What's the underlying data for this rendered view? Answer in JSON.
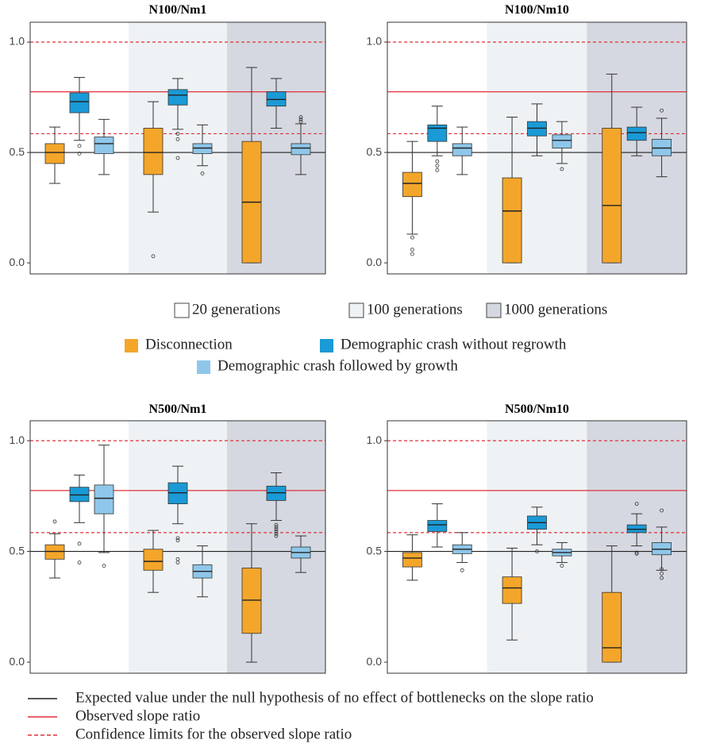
{
  "chart_data": [
    {
      "type": "box",
      "title": "N100/Nm1",
      "categories": [
        "20 generations",
        "100 generations",
        "1000 generations"
      ],
      "band_colors": [
        "#ffffff",
        "#eef2f4",
        "#d5d8e0"
      ],
      "ylim": [
        -0.05,
        1.09
      ],
      "yticks": [
        {
          "value": 0,
          "label": "0.0"
        },
        {
          "value": 0.5,
          "label": "0.5"
        },
        {
          "value": 1,
          "label": "1.0"
        }
      ],
      "reference_lines": [
        {
          "name": "Expected value under the null hypothesis of no effect of bottlenecks on the slope ratio",
          "values": [
            0.5
          ],
          "color": "#222222",
          "style": "solid"
        },
        {
          "name": "Observed slope ratio",
          "values": [
            0.775
          ],
          "color": "#e0303a",
          "style": "solid"
        },
        {
          "name": "Confidence limits for the observed slope ratio",
          "values": [
            0.585,
            1.0
          ],
          "color": "#e0303a",
          "style": "dashed"
        }
      ],
      "series": [
        {
          "name": "Disconnection",
          "color": "#f4a62a",
          "values": [
            {
              "min": 0.36,
              "q1": 0.45,
              "median": 0.5,
              "q3": 0.54,
              "max": 0.615,
              "outliers": []
            },
            {
              "min": 0.23,
              "q1": 0.4,
              "median": 0.5,
              "q3": 0.61,
              "max": 0.73,
              "outliers": [
                0.03
              ]
            },
            {
              "min": 0,
              "q1": 0,
              "median": 0.275,
              "q3": 0.55,
              "max": 0.885,
              "outliers": []
            }
          ]
        },
        {
          "name": "Demographic crash without regrowth",
          "color": "#1a9ad6",
          "values": [
            {
              "min": 0.555,
              "q1": 0.68,
              "median": 0.73,
              "q3": 0.77,
              "max": 0.84,
              "outliers": [
                0.53,
                0.495
              ]
            },
            {
              "min": 0.605,
              "q1": 0.715,
              "median": 0.76,
              "q3": 0.785,
              "max": 0.835,
              "outliers": [
                0.585,
                0.56,
                0.475
              ]
            },
            {
              "min": 0.61,
              "q1": 0.71,
              "median": 0.74,
              "q3": 0.775,
              "max": 0.835,
              "outliers": []
            }
          ]
        },
        {
          "name": "Demographic crash followed by growth",
          "color": "#8ec7ea",
          "values": [
            {
              "min": 0.4,
              "q1": 0.495,
              "median": 0.54,
              "q3": 0.57,
              "max": 0.65,
              "outliers": []
            },
            {
              "min": 0.44,
              "q1": 0.495,
              "median": 0.52,
              "q3": 0.54,
              "max": 0.625,
              "outliers": [
                0.405
              ]
            },
            {
              "min": 0.4,
              "q1": 0.49,
              "median": 0.52,
              "q3": 0.54,
              "max": 0.63,
              "outliers": [
                0.66,
                0.65,
                0.64
              ]
            }
          ]
        }
      ]
    },
    {
      "type": "box",
      "title": "N100/Nm10",
      "categories": [
        "20 generations",
        "100 generations",
        "1000 generations"
      ],
      "band_colors": [
        "#ffffff",
        "#eef2f4",
        "#d5d8e0"
      ],
      "ylim": [
        -0.05,
        1.09
      ],
      "yticks": [
        {
          "value": 0,
          "label": "0.0"
        },
        {
          "value": 0.5,
          "label": "0.5"
        },
        {
          "value": 1,
          "label": "1.0"
        }
      ],
      "reference_lines": [
        {
          "name": "Expected value under the null hypothesis of no effect of bottlenecks on the slope ratio",
          "values": [
            0.5
          ],
          "color": "#222222",
          "style": "solid"
        },
        {
          "name": "Observed slope ratio",
          "values": [
            0.775
          ],
          "color": "#e0303a",
          "style": "solid"
        },
        {
          "name": "Confidence limits for the observed slope ratio",
          "values": [
            0.585,
            1.0
          ],
          "color": "#e0303a",
          "style": "dashed"
        }
      ],
      "series": [
        {
          "name": "Disconnection",
          "color": "#f4a62a",
          "values": [
            {
              "min": 0.13,
              "q1": 0.3,
              "median": 0.36,
              "q3": 0.41,
              "max": 0.55,
              "outliers": [
                0.115,
                0.06,
                0.04
              ]
            },
            {
              "min": 0,
              "q1": 0,
              "median": 0.235,
              "q3": 0.385,
              "max": 0.66,
              "outliers": []
            },
            {
              "min": 0,
              "q1": 0,
              "median": 0.26,
              "q3": 0.61,
              "max": 0.855,
              "outliers": []
            }
          ]
        },
        {
          "name": "Demographic crash without regrowth",
          "color": "#1a9ad6",
          "values": [
            {
              "min": 0.485,
              "q1": 0.55,
              "median": 0.61,
              "q3": 0.625,
              "max": 0.71,
              "outliers": [
                0.46,
                0.44,
                0.42
              ]
            },
            {
              "min": 0.485,
              "q1": 0.575,
              "median": 0.61,
              "q3": 0.64,
              "max": 0.72,
              "outliers": []
            },
            {
              "min": 0.485,
              "q1": 0.555,
              "median": 0.59,
              "q3": 0.615,
              "max": 0.705,
              "outliers": []
            }
          ]
        },
        {
          "name": "Demographic crash followed by growth",
          "color": "#8ec7ea",
          "values": [
            {
              "min": 0.4,
              "q1": 0.485,
              "median": 0.52,
              "q3": 0.54,
              "max": 0.615,
              "outliers": []
            },
            {
              "min": 0.45,
              "q1": 0.52,
              "median": 0.555,
              "q3": 0.58,
              "max": 0.64,
              "outliers": [
                0.425
              ]
            },
            {
              "min": 0.39,
              "q1": 0.485,
              "median": 0.52,
              "q3": 0.56,
              "max": 0.655,
              "outliers": [
                0.69
              ]
            }
          ]
        }
      ]
    },
    {
      "type": "box",
      "title": "N500/Nm1",
      "categories": [
        "20 generations",
        "100 generations",
        "1000 generations"
      ],
      "band_colors": [
        "#ffffff",
        "#eef2f4",
        "#d5d8e0"
      ],
      "ylim": [
        -0.05,
        1.09
      ],
      "yticks": [
        {
          "value": 0,
          "label": "0.0"
        },
        {
          "value": 0.5,
          "label": "0.5"
        },
        {
          "value": 1,
          "label": "1.0"
        }
      ],
      "reference_lines": [
        {
          "name": "Expected value under the null hypothesis of no effect of bottlenecks on the slope ratio",
          "values": [
            0.5
          ],
          "color": "#222222",
          "style": "solid"
        },
        {
          "name": "Observed slope ratio",
          "values": [
            0.775
          ],
          "color": "#e0303a",
          "style": "solid"
        },
        {
          "name": "Confidence limits for the observed slope ratio",
          "values": [
            0.585,
            1.0
          ],
          "color": "#e0303a",
          "style": "dashed"
        }
      ],
      "series": [
        {
          "name": "Disconnection",
          "color": "#f4a62a",
          "values": [
            {
              "min": 0.38,
              "q1": 0.465,
              "median": 0.5,
              "q3": 0.53,
              "max": 0.58,
              "outliers": [
                0.635
              ]
            },
            {
              "min": 0.315,
              "q1": 0.415,
              "median": 0.455,
              "q3": 0.51,
              "max": 0.595,
              "outliers": []
            },
            {
              "min": 0,
              "q1": 0.13,
              "median": 0.28,
              "q3": 0.425,
              "max": 0.625,
              "outliers": []
            }
          ]
        },
        {
          "name": "Demographic crash without regrowth",
          "color": "#1a9ad6",
          "values": [
            {
              "min": 0.63,
              "q1": 0.725,
              "median": 0.755,
              "q3": 0.79,
              "max": 0.845,
              "outliers": [
                0.535,
                0.45
              ]
            },
            {
              "min": 0.625,
              "q1": 0.715,
              "median": 0.765,
              "q3": 0.81,
              "max": 0.885,
              "outliers": [
                0.56,
                0.55,
                0.465,
                0.45
              ]
            },
            {
              "min": 0.64,
              "q1": 0.73,
              "median": 0.765,
              "q3": 0.795,
              "max": 0.855,
              "outliers": [
                0.62,
                0.61,
                0.6,
                0.59,
                0.58,
                0.57
              ]
            }
          ]
        },
        {
          "name": "Demographic crash followed by growth",
          "color": "#8ec7ea",
          "values": [
            {
              "min": 0.495,
              "q1": 0.67,
              "median": 0.74,
              "q3": 0.8,
              "max": 0.98,
              "outliers": [
                0.435
              ]
            },
            {
              "min": 0.295,
              "q1": 0.38,
              "median": 0.41,
              "q3": 0.44,
              "max": 0.525,
              "outliers": []
            },
            {
              "min": 0.405,
              "q1": 0.47,
              "median": 0.495,
              "q3": 0.52,
              "max": 0.57,
              "outliers": []
            }
          ]
        }
      ]
    },
    {
      "type": "box",
      "title": "N500/Nm10",
      "categories": [
        "20 generations",
        "100 generations",
        "1000 generations"
      ],
      "band_colors": [
        "#ffffff",
        "#eef2f4",
        "#d5d8e0"
      ],
      "ylim": [
        -0.05,
        1.09
      ],
      "yticks": [
        {
          "value": 0,
          "label": "0.0"
        },
        {
          "value": 0.5,
          "label": "0.5"
        },
        {
          "value": 1,
          "label": "1.0"
        }
      ],
      "reference_lines": [
        {
          "name": "Expected value under the null hypothesis of no effect of bottlenecks on the slope ratio",
          "values": [
            0.5
          ],
          "color": "#222222",
          "style": "solid"
        },
        {
          "name": "Observed slope ratio",
          "values": [
            0.775
          ],
          "color": "#e0303a",
          "style": "solid"
        },
        {
          "name": "Confidence limits for the observed slope ratio",
          "values": [
            0.585,
            1.0
          ],
          "color": "#e0303a",
          "style": "dashed"
        }
      ],
      "series": [
        {
          "name": "Disconnection",
          "color": "#f4a62a",
          "values": [
            {
              "min": 0.37,
              "q1": 0.43,
              "median": 0.47,
              "q3": 0.495,
              "max": 0.575,
              "outliers": []
            },
            {
              "min": 0.1,
              "q1": 0.265,
              "median": 0.335,
              "q3": 0.385,
              "max": 0.515,
              "outliers": []
            },
            {
              "min": 0,
              "q1": 0,
              "median": 0.065,
              "q3": 0.315,
              "max": 0.525,
              "outliers": []
            }
          ]
        },
        {
          "name": "Demographic crash without regrowth",
          "color": "#1a9ad6",
          "values": [
            {
              "min": 0.52,
              "q1": 0.59,
              "median": 0.62,
              "q3": 0.64,
              "max": 0.715,
              "outliers": []
            },
            {
              "min": 0.53,
              "q1": 0.6,
              "median": 0.63,
              "q3": 0.66,
              "max": 0.7,
              "outliers": [
                0.5
              ]
            },
            {
              "min": 0.525,
              "q1": 0.585,
              "median": 0.6,
              "q3": 0.62,
              "max": 0.67,
              "outliers": [
                0.715,
                0.495,
                0.49
              ]
            }
          ]
        },
        {
          "name": "Demographic crash followed by growth",
          "color": "#8ec7ea",
          "values": [
            {
              "min": 0.45,
              "q1": 0.49,
              "median": 0.51,
              "q3": 0.53,
              "max": 0.585,
              "outliers": [
                0.415
              ]
            },
            {
              "min": 0.45,
              "q1": 0.48,
              "median": 0.495,
              "q3": 0.51,
              "max": 0.54,
              "outliers": [
                0.435
              ]
            },
            {
              "min": 0.415,
              "q1": 0.485,
              "median": 0.51,
              "q3": 0.54,
              "max": 0.61,
              "outliers": [
                0.685,
                0.42,
                0.4,
                0.38
              ]
            }
          ]
        }
      ]
    }
  ]
}
